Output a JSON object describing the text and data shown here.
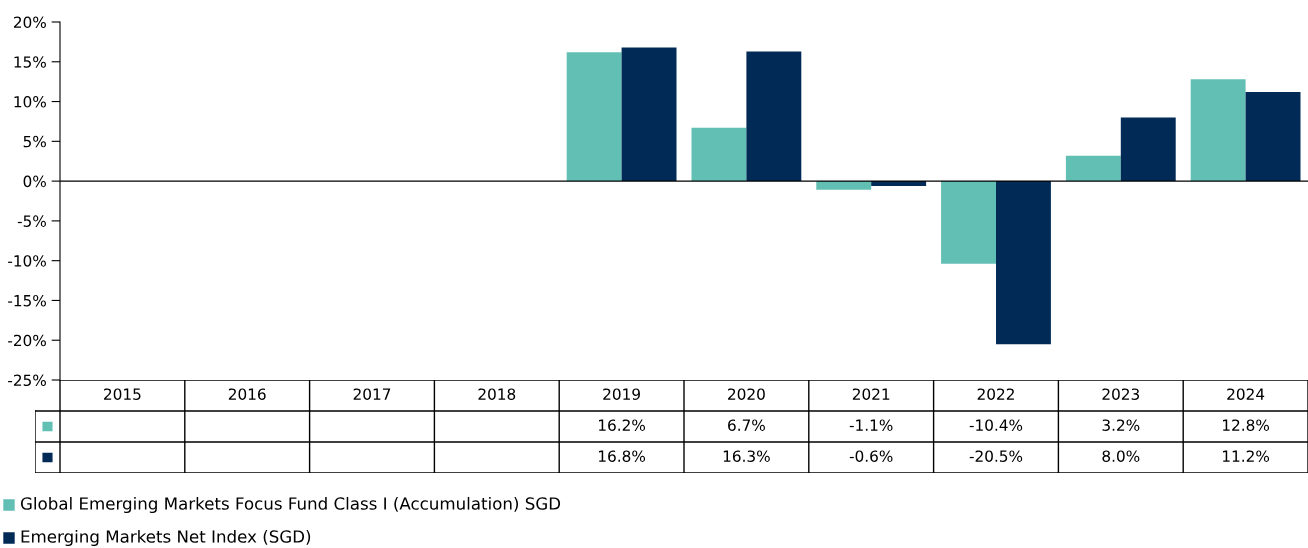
{
  "chart_data": {
    "type": "bar",
    "categories": [
      "2015",
      "2016",
      "2017",
      "2018",
      "2019",
      "2020",
      "2021",
      "2022",
      "2023",
      "2024"
    ],
    "series": [
      {
        "name": "Global Emerging Markets Focus Fund Class I (Accumulation) SGD",
        "color": "#62bfb4",
        "values": [
          null,
          null,
          null,
          null,
          16.2,
          6.7,
          -1.1,
          -10.4,
          3.2,
          12.8
        ],
        "value_labels": [
          null,
          null,
          null,
          null,
          "16.2%",
          "6.7%",
          "-1.1%",
          "-10.4%",
          "3.2%",
          "12.8%"
        ]
      },
      {
        "name": "Emerging Markets Net Index (SGD)",
        "color": "#022a56",
        "values": [
          null,
          null,
          null,
          null,
          16.8,
          16.3,
          -0.6,
          -20.5,
          8.0,
          11.2
        ],
        "value_labels": [
          null,
          null,
          null,
          null,
          "16.8%",
          "16.3%",
          "-0.6%",
          "-20.5%",
          "8.0%",
          "11.2%"
        ]
      }
    ],
    "ylim": [
      -25,
      20
    ],
    "yticks": [
      {
        "value": 20,
        "label": "20%"
      },
      {
        "value": 15,
        "label": "15%"
      },
      {
        "value": 10,
        "label": "10%"
      },
      {
        "value": 5,
        "label": "5%"
      },
      {
        "value": 0,
        "label": "0%"
      },
      {
        "value": -5,
        "label": "-5%"
      },
      {
        "value": -10,
        "label": "-10%"
      },
      {
        "value": -15,
        "label": "-15%"
      },
      {
        "value": -20,
        "label": "-20%"
      },
      {
        "value": -25,
        "label": "-25%"
      }
    ],
    "legend": "bottom left"
  }
}
